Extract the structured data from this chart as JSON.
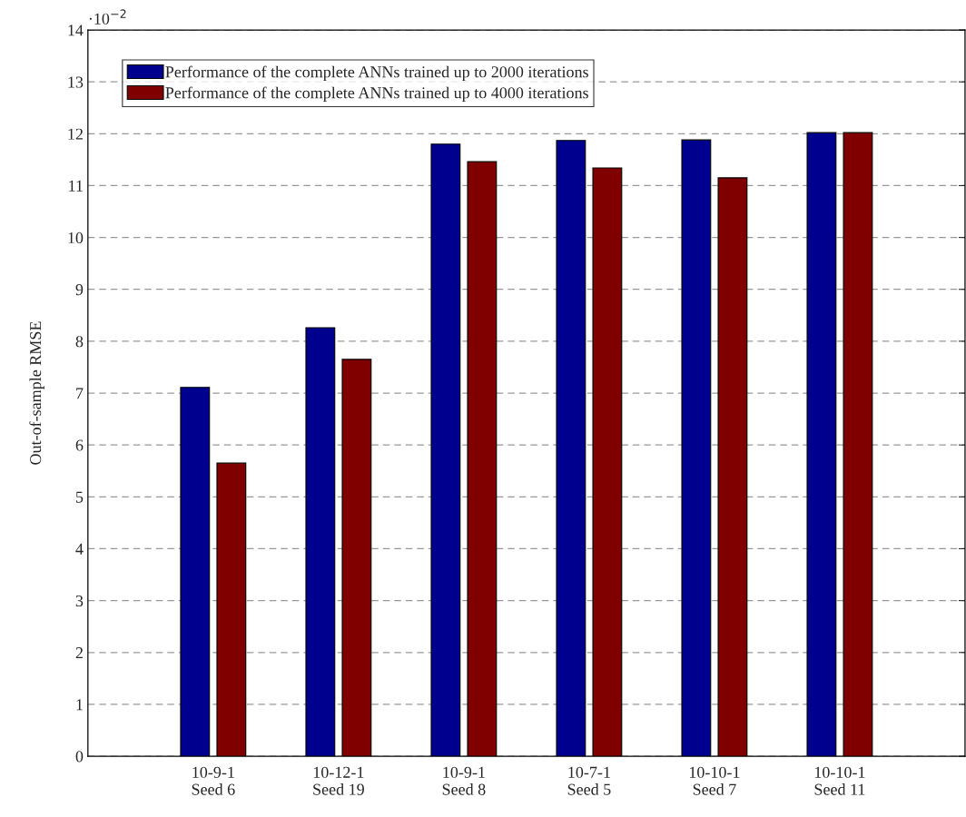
{
  "chart_data": {
    "type": "bar",
    "ylabel": "Out-of-sample RMSE",
    "categories": [
      "10-9-1\nSeed 6",
      "10-12-1\nSeed 19",
      "10-9-1\nSeed 8",
      "10-7-1\nSeed 5",
      "10-10-1\nSeed 7",
      "10-10-1\nSeed 11"
    ],
    "series": [
      {
        "name": "Performance of the complete ANNs trained up to 2000 iterations",
        "color": "#00008f",
        "values": [
          7.11,
          8.26,
          11.8,
          11.87,
          11.88,
          12.02
        ]
      },
      {
        "name": "Performance of the complete ANNs trained up to 4000 iterations",
        "color": "#800000",
        "values": [
          5.65,
          7.65,
          11.46,
          11.34,
          11.15,
          12.02
        ]
      }
    ],
    "ylim": [
      0,
      14
    ],
    "yticks": [
      0,
      1,
      2,
      3,
      4,
      5,
      6,
      7,
      8,
      9,
      10,
      11,
      12,
      13,
      14
    ],
    "grid": "y",
    "legend": "top left",
    "annotations": [
      "·10$^{−2}$"
    ]
  }
}
